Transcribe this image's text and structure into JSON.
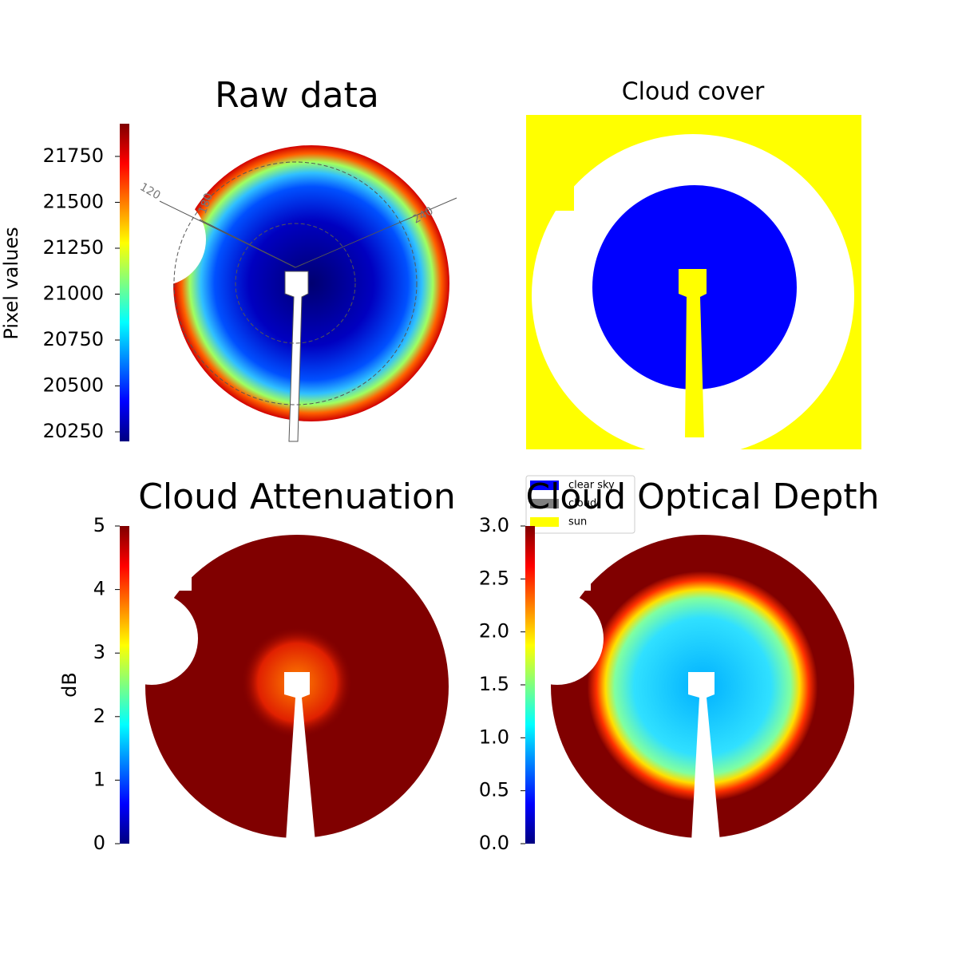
{
  "chart_data": [
    {
      "type": "image",
      "title": "Raw data",
      "ylabel": "Pixel values",
      "ylim": [
        20198,
        21928
      ],
      "yticks": [
        20250,
        20500,
        20750,
        21000,
        21250,
        21500,
        21750
      ],
      "annotations": [
        "120",
        "180",
        "240"
      ]
    },
    {
      "type": "classification",
      "title": "Cloud cover",
      "series": [
        {
          "name": "clear sky",
          "color": "#0000ff"
        },
        {
          "name": "cloud",
          "color": "#808080"
        },
        {
          "name": "sun",
          "color": "#ffff00"
        }
      ]
    },
    {
      "type": "image",
      "title": "Cloud Attenuation",
      "ylabel": "dB",
      "ylim": [
        0,
        5
      ],
      "yticks": [
        0,
        1,
        2,
        3,
        4,
        5
      ]
    },
    {
      "type": "image",
      "title": "Cloud Optical Depth",
      "ylim": [
        0,
        3
      ],
      "yticks": [
        {
          "value": 0,
          "label": "0.0"
        },
        {
          "value": 0.5,
          "label": "0.5"
        },
        {
          "value": 1,
          "label": "1.0"
        },
        {
          "value": 1.5,
          "label": "1.5"
        },
        {
          "value": 2,
          "label": "2.0"
        },
        {
          "value": 2.5,
          "label": "2.5"
        },
        {
          "value": 3,
          "label": "3.0"
        }
      ]
    }
  ]
}
